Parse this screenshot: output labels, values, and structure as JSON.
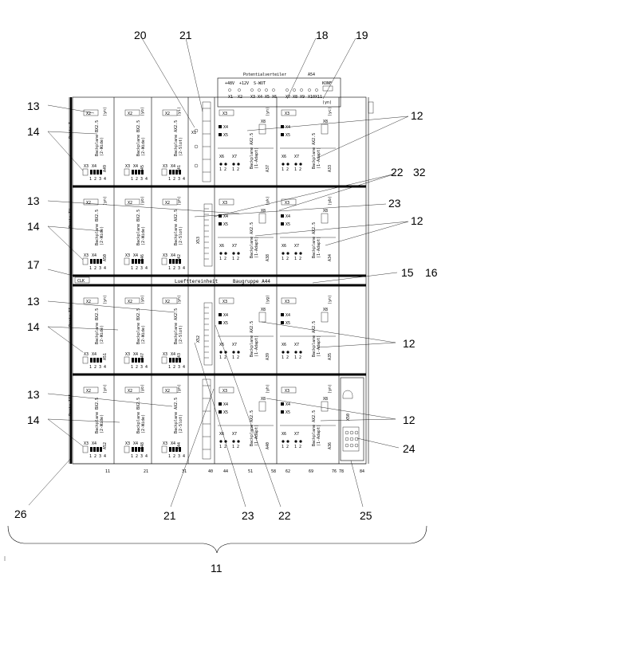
{
  "refs": {
    "r20": "20",
    "r21_top": "21",
    "r18": "18",
    "r19": "19",
    "r13_a": "13",
    "r14_a": "14",
    "r12_a": "12",
    "r22_top": "22",
    "r32": "32",
    "r13_b": "13",
    "r23_top": "23",
    "r14_b": "14",
    "r12_b": "12",
    "r17": "17",
    "r15": "15",
    "r16": "16",
    "r13_c": "13",
    "r14_c": "14",
    "r12_c": "12",
    "r13_d": "13",
    "r14_d": "14",
    "r12_d": "12",
    "r24": "24",
    "r26": "26",
    "r21_bot": "21",
    "r23_bot": "23",
    "r22_bot": "22",
    "r25": "25",
    "r11": "11"
  },
  "top_panel": {
    "title": "Potentialverteiler",
    "id": "A54",
    "labels": [
      "+48V",
      "+12V",
      "S-WOT",
      "KONF"
    ],
    "connectors": [
      "X1",
      "X2",
      "X3",
      "X4",
      "X5",
      "X6",
      "X7",
      "X8",
      "X9",
      "X10",
      "X11"
    ],
    "yn": "(yn)"
  },
  "fan_row": {
    "tab": "CLK",
    "center": "Luefttereinheit",
    "right": "Baugruppe A44"
  },
  "scale": [
    "11",
    "21",
    "31",
    "40",
    "44",
    "51",
    "58",
    "62",
    "69",
    "76 78",
    "84"
  ],
  "tiers": [
    {
      "porta": "Porta I",
      "cards": [
        "A49",
        "A45",
        "A41",
        "A37",
        "A33"
      ],
      "yc": [
        "(yn)",
        "(yo)",
        "(yi)",
        "(yn)",
        "(yc)"
      ]
    },
    {
      "porta": "Porta IV",
      "cards": [
        "A50",
        "A46",
        "A42",
        "A38",
        "A34"
      ],
      "yc": [
        "(yn)",
        "(yo)",
        "(yn)",
        "(yk)",
        "(yb)"
      ]
    },
    {
      "porta": "Porta II",
      "cards": [
        "A51",
        "A47",
        "A43",
        "A39",
        "A35"
      ],
      "yc": [
        "(yn)",
        "(yo)",
        "(yn)",
        "(yg)",
        "(yn)"
      ]
    },
    {
      "porta": "Porta III",
      "cards": [
        "A52",
        "A48",
        "A44",
        "A40",
        "A36"
      ],
      "yc": [
        "(yn)",
        "(yo)",
        "(yn)",
        "(yh)",
        "(yn)"
      ]
    }
  ],
  "card_text": {
    "slot_x2": "X2",
    "slot_x3": "X3",
    "slot_x4": "X4",
    "slot_x5": "X5",
    "slot_x6": "X6",
    "slot_x7": "X7",
    "slot_x8": "X8",
    "slot_x1": "X1",
    "x53": "X53",
    "x52": "X52",
    "x50": "X50",
    "pins": "1 2 3 4",
    "pins2": "1 2",
    "bp_a": "Backplane BX2.5",
    "bp_a_sub": "(2-Wide)",
    "bp_b": "Backplane BX2.5",
    "bp_b_sub": "(2-Wide)",
    "bp_c": "Backplane AX2.5",
    "bp_c_sub": "(2-Slot)",
    "bp_d": "Backplane AX2.5",
    "bp_d_sub": "(1-Adapt)",
    "bp_e": "Backplane AX2.5",
    "bp_e_sub": "(1-Adapt)"
  }
}
